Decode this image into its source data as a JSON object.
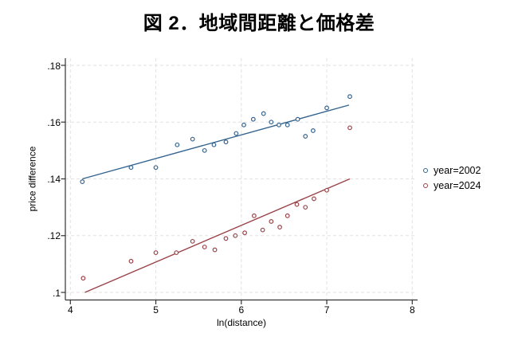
{
  "figure": {
    "title": "図 2．地域間距離と価格差"
  },
  "colors": {
    "background": "#ffffff",
    "axis": "#333333",
    "grid": "#e2e2e2",
    "text": "#000000",
    "series_2002": "#35648f",
    "series_2024": "#9a4348"
  },
  "chart_data": {
    "type": "scatter",
    "title": "図 2．地域間距離と価格差",
    "xlabel": "ln(distance)",
    "ylabel": "price difference",
    "xlim": [
      3.95,
      8.05
    ],
    "ylim": [
      0.098,
      0.182
    ],
    "xticks": [
      4,
      5,
      6,
      7,
      8
    ],
    "xtick_labels": [
      "4",
      "5",
      "6",
      "7",
      "8"
    ],
    "yticks": [
      0.1,
      0.12,
      0.14,
      0.16,
      0.18
    ],
    "ytick_labels": [
      ".1",
      ".12",
      ".14",
      ".16",
      ".18"
    ],
    "grid": {
      "show": true,
      "style": "dashed",
      "axes": "both"
    },
    "legend_position": "right-middle",
    "series": [
      {
        "name": "year=2002",
        "color": "#35648f",
        "marker": "hollow-circle",
        "points": [
          [
            4.14,
            0.139
          ],
          [
            4.71,
            0.144
          ],
          [
            5.0,
            0.144
          ],
          [
            5.25,
            0.152
          ],
          [
            5.43,
            0.154
          ],
          [
            5.57,
            0.15
          ],
          [
            5.68,
            0.152
          ],
          [
            5.82,
            0.153
          ],
          [
            5.94,
            0.156
          ],
          [
            6.03,
            0.159
          ],
          [
            6.14,
            0.161
          ],
          [
            6.26,
            0.163
          ],
          [
            6.35,
            0.16
          ],
          [
            6.44,
            0.159
          ],
          [
            6.54,
            0.159
          ],
          [
            6.66,
            0.161
          ],
          [
            6.75,
            0.155
          ],
          [
            6.84,
            0.157
          ],
          [
            7.0,
            0.165
          ],
          [
            7.27,
            0.169
          ]
        ],
        "fit_line": [
          [
            4.14,
            0.14
          ],
          [
            7.26,
            0.166
          ]
        ]
      },
      {
        "name": "year=2024",
        "color": "#9a4348",
        "marker": "hollow-circle",
        "points": [
          [
            4.15,
            0.105
          ],
          [
            4.71,
            0.111
          ],
          [
            5.0,
            0.114
          ],
          [
            5.24,
            0.114
          ],
          [
            5.43,
            0.118
          ],
          [
            5.57,
            0.116
          ],
          [
            5.69,
            0.115
          ],
          [
            5.82,
            0.119
          ],
          [
            5.93,
            0.12
          ],
          [
            6.04,
            0.121
          ],
          [
            6.15,
            0.127
          ],
          [
            6.25,
            0.122
          ],
          [
            6.35,
            0.125
          ],
          [
            6.45,
            0.123
          ],
          [
            6.54,
            0.127
          ],
          [
            6.65,
            0.131
          ],
          [
            6.75,
            0.13
          ],
          [
            6.85,
            0.133
          ],
          [
            7.0,
            0.136
          ],
          [
            7.27,
            0.158
          ]
        ],
        "fit_line": [
          [
            4.17,
            0.1
          ],
          [
            7.27,
            0.14
          ]
        ]
      }
    ]
  },
  "legend": {
    "items": [
      "year=2002",
      "year=2024"
    ]
  }
}
